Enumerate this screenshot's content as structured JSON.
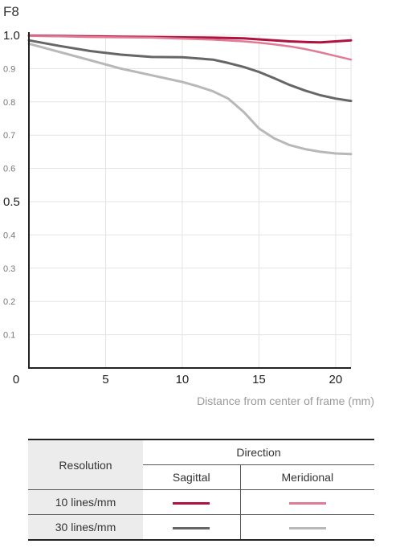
{
  "chart_data": {
    "type": "line",
    "title": "F8",
    "xlabel": "Distance from center of frame (mm)",
    "ylabel": "",
    "xlim": [
      0,
      21
    ],
    "ylim": [
      0,
      1.0
    ],
    "x_ticks": [
      "5",
      "10",
      "15",
      "20"
    ],
    "origin_label": "0",
    "y_ticks": [
      {
        "v": 1.0,
        "label": "1.0",
        "major": true
      },
      {
        "v": 0.9,
        "label": "0.9",
        "major": false
      },
      {
        "v": 0.8,
        "label": "0.8",
        "major": false
      },
      {
        "v": 0.7,
        "label": "0.7",
        "major": false
      },
      {
        "v": 0.6,
        "label": "0.6",
        "major": false
      },
      {
        "v": 0.5,
        "label": "0.5",
        "major": true
      },
      {
        "v": 0.4,
        "label": "0.4",
        "major": false
      },
      {
        "v": 0.3,
        "label": "0.3",
        "major": false
      },
      {
        "v": 0.2,
        "label": "0.2",
        "major": false
      },
      {
        "v": 0.1,
        "label": "0.1",
        "major": false
      }
    ],
    "vertical_grid": [
      5,
      10,
      15,
      20
    ],
    "series": [
      {
        "key": "s10",
        "color": "#b0123f",
        "width": 3,
        "x": [
          0,
          2,
          4,
          6,
          8,
          10,
          12,
          14,
          15,
          16,
          17,
          18,
          19,
          20,
          21
        ],
        "y": [
          0.999,
          0.998,
          0.997,
          0.996,
          0.995,
          0.994,
          0.993,
          0.991,
          0.988,
          0.985,
          0.982,
          0.98,
          0.979,
          0.982,
          0.985
        ]
      },
      {
        "key": "m10",
        "color": "#e07b95",
        "width": 2.5,
        "x": [
          0,
          2,
          4,
          6,
          8,
          10,
          12,
          14,
          15,
          16,
          17,
          18,
          19,
          20,
          21
        ],
        "y": [
          0.998,
          0.997,
          0.995,
          0.994,
          0.993,
          0.99,
          0.987,
          0.982,
          0.978,
          0.973,
          0.967,
          0.959,
          0.949,
          0.938,
          0.927
        ]
      },
      {
        "key": "s30",
        "color": "#666666",
        "width": 3,
        "x": [
          0,
          2,
          4,
          6,
          8,
          10,
          12,
          13,
          14,
          15,
          16,
          17,
          18,
          19,
          20,
          21
        ],
        "y": [
          0.985,
          0.968,
          0.953,
          0.942,
          0.935,
          0.934,
          0.927,
          0.917,
          0.905,
          0.89,
          0.871,
          0.851,
          0.834,
          0.82,
          0.81,
          0.803
        ]
      },
      {
        "key": "m30",
        "color": "#b8b8b8",
        "width": 3,
        "x": [
          0,
          2,
          4,
          6,
          8,
          10,
          11,
          12,
          13,
          14,
          15,
          16,
          17,
          18,
          19,
          20,
          21
        ],
        "y": [
          0.975,
          0.95,
          0.925,
          0.9,
          0.88,
          0.86,
          0.847,
          0.832,
          0.81,
          0.77,
          0.72,
          0.69,
          0.67,
          0.658,
          0.65,
          0.645,
          0.643
        ]
      }
    ]
  },
  "legend": {
    "direction": "Direction",
    "resolution": "Resolution",
    "sagittal": "Sagittal",
    "meridional": "Meridional",
    "row_10": "10 lines/mm",
    "row_30": "30 lines/mm",
    "colors": {
      "s10": "#b0123f",
      "m10": "#e07b95",
      "s30": "#666666",
      "m30": "#b8b8b8"
    }
  }
}
